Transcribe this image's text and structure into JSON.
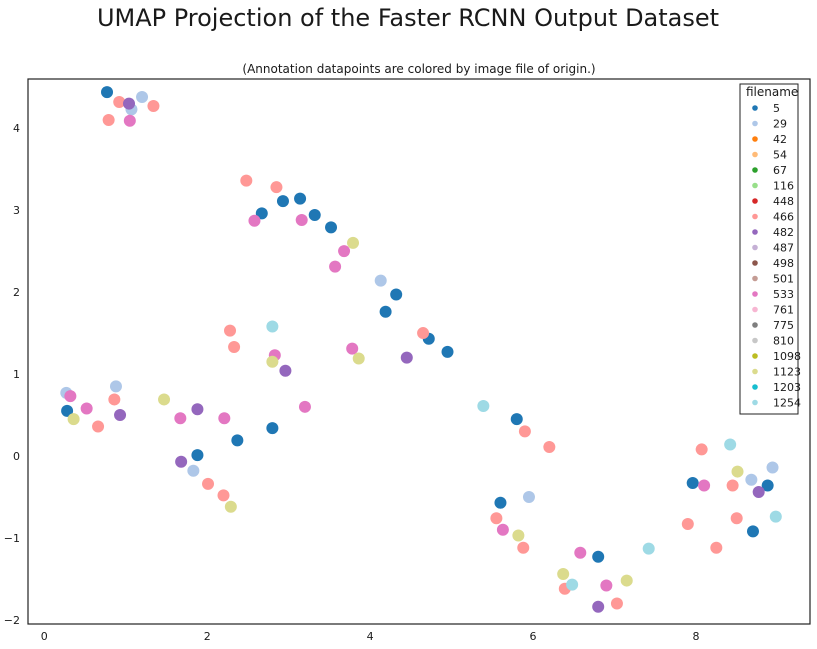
{
  "chart_data": {
    "type": "scatter",
    "title": "UMAP Projection of the Faster RCNN Output Dataset",
    "subtitle": "(Annotation datapoints are colored by image file of origin.)",
    "xlabel": "",
    "ylabel": "",
    "xlim": [
      -0.2,
      9.4
    ],
    "ylim": [
      -2.05,
      4.6
    ],
    "xticks": [
      0,
      2,
      4,
      6,
      8
    ],
    "yticks": [
      -2,
      -1,
      0,
      1,
      2,
      3,
      4
    ],
    "xtick_labels": [
      "0",
      "2",
      "4",
      "6",
      "8"
    ],
    "ytick_labels": [
      "−2",
      "−1",
      "0",
      "1",
      "2",
      "3",
      "4"
    ],
    "grid": false,
    "legend": {
      "title": "filename",
      "placement": "top-right",
      "entries": [
        {
          "label": "5",
          "color": "#1f77b4"
        },
        {
          "label": "29",
          "color": "#aec7e8"
        },
        {
          "label": "42",
          "color": "#ff7f0e"
        },
        {
          "label": "54",
          "color": "#ffbb78"
        },
        {
          "label": "67",
          "color": "#2ca02c"
        },
        {
          "label": "116",
          "color": "#98df8a"
        },
        {
          "label": "448",
          "color": "#d62728"
        },
        {
          "label": "466",
          "color": "#ff9896"
        },
        {
          "label": "482",
          "color": "#9467bd"
        },
        {
          "label": "487",
          "color": "#c5b0d5"
        },
        {
          "label": "498",
          "color": "#8c564b"
        },
        {
          "label": "501",
          "color": "#c49c94"
        },
        {
          "label": "533",
          "color": "#e377c2"
        },
        {
          "label": "761",
          "color": "#f7b6d2"
        },
        {
          "label": "775",
          "color": "#7f7f7f"
        },
        {
          "label": "810",
          "color": "#c7c7c7"
        },
        {
          "label": "1098",
          "color": "#bcbd22"
        },
        {
          "label": "1123",
          "color": "#dbdb8d"
        },
        {
          "label": "1203",
          "color": "#17becf"
        },
        {
          "label": "1254",
          "color": "#9edae5"
        }
      ]
    },
    "series": [
      {
        "name": "5",
        "color": "#1f77b4",
        "points": [
          [
            0.77,
            4.44
          ],
          [
            2.67,
            2.96
          ],
          [
            2.93,
            3.11
          ],
          [
            3.14,
            3.14
          ],
          [
            3.32,
            2.94
          ],
          [
            3.52,
            2.79
          ],
          [
            4.32,
            1.97
          ],
          [
            4.19,
            1.76
          ],
          [
            4.72,
            1.43
          ],
          [
            4.95,
            1.27
          ],
          [
            0.28,
            0.55
          ],
          [
            2.37,
            0.19
          ],
          [
            2.8,
            0.34
          ],
          [
            1.88,
            0.01
          ],
          [
            5.8,
            0.45
          ],
          [
            5.6,
            -0.57
          ],
          [
            6.8,
            -1.23
          ],
          [
            7.96,
            -0.33
          ],
          [
            8.88,
            -0.36
          ],
          [
            8.7,
            -0.92
          ]
        ]
      },
      {
        "name": "29",
        "color": "#aec7e8",
        "points": [
          [
            1.2,
            4.38
          ],
          [
            1.07,
            4.23
          ],
          [
            4.13,
            2.14
          ],
          [
            0.27,
            0.77
          ],
          [
            0.88,
            0.85
          ],
          [
            1.83,
            -0.18
          ],
          [
            5.95,
            -0.5
          ],
          [
            8.94,
            -0.14
          ],
          [
            8.68,
            -0.29
          ]
        ]
      },
      {
        "name": "466",
        "color": "#ff9896",
        "points": [
          [
            0.92,
            4.32
          ],
          [
            1.34,
            4.27
          ],
          [
            0.79,
            4.1
          ],
          [
            2.48,
            3.36
          ],
          [
            2.85,
            3.28
          ],
          [
            2.28,
            1.53
          ],
          [
            2.33,
            1.33
          ],
          [
            4.65,
            1.5
          ],
          [
            0.86,
            0.69
          ],
          [
            0.66,
            0.36
          ],
          [
            2.01,
            -0.34
          ],
          [
            2.2,
            -0.48
          ],
          [
            5.9,
            0.3
          ],
          [
            6.2,
            0.11
          ],
          [
            5.55,
            -0.76
          ],
          [
            5.88,
            -1.12
          ],
          [
            6.39,
            -1.62
          ],
          [
            7.03,
            -1.8
          ],
          [
            8.07,
            0.08
          ],
          [
            8.45,
            -0.36
          ],
          [
            8.5,
            -0.76
          ],
          [
            7.9,
            -0.83
          ],
          [
            8.25,
            -1.12
          ]
        ]
      },
      {
        "name": "482",
        "color": "#9467bd",
        "points": [
          [
            1.04,
            4.3
          ],
          [
            2.96,
            1.04
          ],
          [
            4.45,
            1.2
          ],
          [
            0.93,
            0.5
          ],
          [
            1.88,
            0.57
          ],
          [
            1.68,
            -0.07
          ],
          [
            6.8,
            -1.84
          ],
          [
            8.77,
            -0.44
          ]
        ]
      },
      {
        "name": "533",
        "color": "#e377c2",
        "points": [
          [
            1.05,
            4.09
          ],
          [
            2.58,
            2.87
          ],
          [
            3.16,
            2.88
          ],
          [
            3.68,
            2.5
          ],
          [
            3.57,
            2.31
          ],
          [
            2.83,
            1.23
          ],
          [
            3.78,
            1.31
          ],
          [
            0.32,
            0.73
          ],
          [
            0.52,
            0.58
          ],
          [
            1.67,
            0.46
          ],
          [
            2.21,
            0.46
          ],
          [
            3.2,
            0.6
          ],
          [
            5.63,
            -0.9
          ],
          [
            6.58,
            -1.18
          ],
          [
            6.9,
            -1.58
          ],
          [
            8.1,
            -0.36
          ]
        ]
      },
      {
        "name": "1123",
        "color": "#dbdb8d",
        "points": [
          [
            3.79,
            2.6
          ],
          [
            3.86,
            1.19
          ],
          [
            2.8,
            1.15
          ],
          [
            1.47,
            0.69
          ],
          [
            0.36,
            0.45
          ],
          [
            2.29,
            -0.62
          ],
          [
            5.82,
            -0.97
          ],
          [
            6.37,
            -1.44
          ],
          [
            7.15,
            -1.52
          ],
          [
            8.51,
            -0.19
          ]
        ]
      },
      {
        "name": "1254",
        "color": "#9edae5",
        "points": [
          [
            2.8,
            1.58
          ],
          [
            5.39,
            0.61
          ],
          [
            6.48,
            -1.57
          ],
          [
            7.42,
            -1.13
          ],
          [
            8.42,
            0.14
          ],
          [
            8.98,
            -0.74
          ]
        ]
      }
    ]
  }
}
